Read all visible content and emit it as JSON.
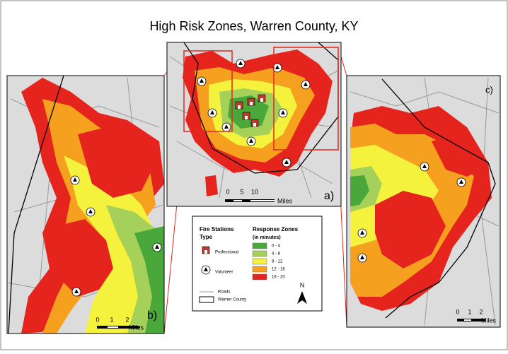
{
  "title": "High Risk Zones, Warren County, KY",
  "panels": [
    {
      "label": "a)",
      "scale": {
        "ticks": [
          "0",
          "5",
          "10"
        ],
        "unit": "Miles"
      }
    },
    {
      "label": "b)",
      "scale": {
        "ticks": [
          "0",
          "1",
          "2"
        ],
        "unit": "Miles"
      }
    },
    {
      "label": "c)",
      "scale": {
        "ticks": [
          "0",
          "1",
          "2"
        ],
        "unit": "Miles"
      }
    }
  ],
  "legend": {
    "fire_stations": {
      "title": "Fire Stations",
      "subtitle": "Type",
      "items": [
        "Professional",
        "Volunteer"
      ]
    },
    "response_zones": {
      "title": "Response Zones",
      "subtitle": "(in minutes)",
      "items": [
        {
          "label": "0 - 4",
          "color": "#4aa83a"
        },
        {
          "label": "4 - 8",
          "color": "#a5d15a"
        },
        {
          "label": "8 - 12",
          "color": "#f4f23c"
        },
        {
          "label": "12 - 16",
          "color": "#f5a11f"
        },
        {
          "label": "16 - 20",
          "color": "#e6241e"
        }
      ]
    },
    "other": [
      "Roads",
      "Warren County"
    ],
    "north": "N"
  }
}
